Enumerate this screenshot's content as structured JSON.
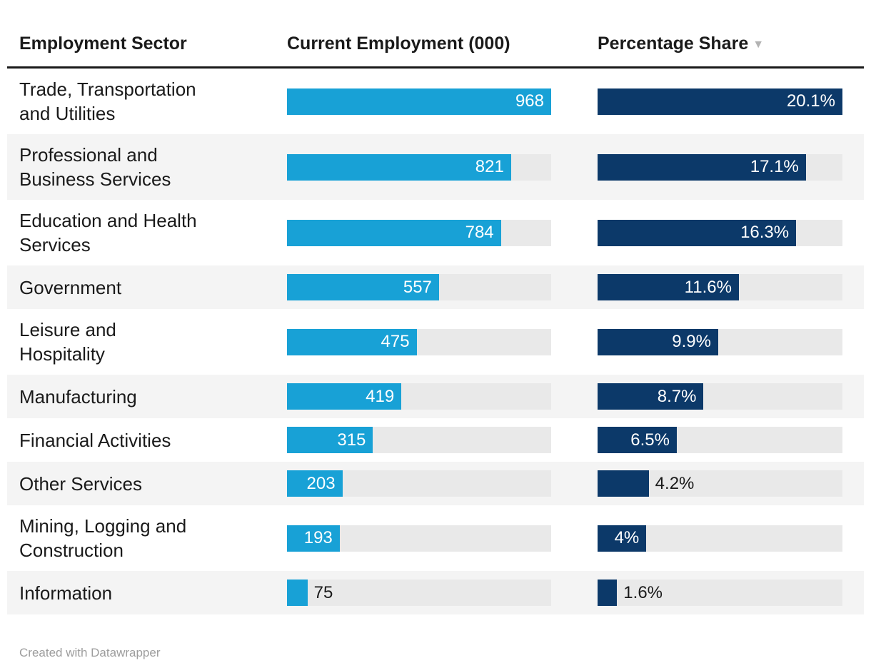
{
  "table": {
    "columns": [
      {
        "label": "Employment Sector",
        "sortable": true
      },
      {
        "label": "Current Employment (000)",
        "sortable": true
      },
      {
        "label": "Percentage Share",
        "sortable": true,
        "sort_icon": "▼",
        "sort_direction": "descending"
      }
    ],
    "rows": [
      {
        "sector": "Trade, Transportation\nand Utilities",
        "employment_value": 968,
        "employment_label": "968",
        "employment_label_inside": true,
        "share_value": 20.1,
        "share_label": "20.1%",
        "share_label_inside": true
      },
      {
        "sector": "Professional and\nBusiness Services",
        "employment_value": 821,
        "employment_label": "821",
        "employment_label_inside": true,
        "share_value": 17.1,
        "share_label": "17.1%",
        "share_label_inside": true
      },
      {
        "sector": "Education and Health\nServices",
        "employment_value": 784,
        "employment_label": "784",
        "employment_label_inside": true,
        "share_value": 16.3,
        "share_label": "16.3%",
        "share_label_inside": true
      },
      {
        "sector": "Government",
        "employment_value": 557,
        "employment_label": "557",
        "employment_label_inside": true,
        "share_value": 11.6,
        "share_label": "11.6%",
        "share_label_inside": true
      },
      {
        "sector": "Leisure and\nHospitality",
        "employment_value": 475,
        "employment_label": "475",
        "employment_label_inside": true,
        "share_value": 9.9,
        "share_label": "9.9%",
        "share_label_inside": true
      },
      {
        "sector": "Manufacturing",
        "employment_value": 419,
        "employment_label": "419",
        "employment_label_inside": true,
        "share_value": 8.7,
        "share_label": "8.7%",
        "share_label_inside": true
      },
      {
        "sector": "Financial Activities",
        "employment_value": 315,
        "employment_label": "315",
        "employment_label_inside": true,
        "share_value": 6.5,
        "share_label": "6.5%",
        "share_label_inside": true
      },
      {
        "sector": "Other Services",
        "employment_value": 203,
        "employment_label": "203",
        "employment_label_inside": true,
        "share_value": 4.2,
        "share_label": "4.2%",
        "share_label_inside": false
      },
      {
        "sector": "Mining, Logging and\nConstruction",
        "employment_value": 193,
        "employment_label": "193",
        "employment_label_inside": true,
        "share_value": 4,
        "share_label": "4%",
        "share_label_inside": true
      },
      {
        "sector": "Information",
        "employment_value": 75,
        "employment_label": "75",
        "employment_label_inside": false,
        "share_value": 1.6,
        "share_label": "1.6%",
        "share_label_inside": false
      }
    ]
  },
  "colors": {
    "employment_bar": "#18a1d6",
    "share_bar": "#0c3969",
    "track": "#e9e9e9",
    "row_stripe": "#f4f4f4",
    "header_rule": "#1a1a1a",
    "text": "#1a1a1a",
    "bar_label_inside": "#ffffff",
    "footer_text": "#9d9d9d"
  },
  "footer": {
    "credit": "Created with Datawrapper"
  },
  "chart_data": {
    "type": "table",
    "title": "",
    "columns": [
      "Employment Sector",
      "Current Employment (000)",
      "Percentage Share"
    ],
    "categories": [
      "Trade, Transportation and Utilities",
      "Professional and Business Services",
      "Education and Health Services",
      "Government",
      "Leisure and Hospitality",
      "Manufacturing",
      "Financial Activities",
      "Other Services",
      "Mining, Logging and Construction",
      "Information"
    ],
    "series": [
      {
        "name": "Current Employment (000)",
        "type": "bar",
        "values": [
          968,
          821,
          784,
          557,
          475,
          419,
          315,
          203,
          193,
          75
        ],
        "max_scale": 968,
        "color": "#18a1d6"
      },
      {
        "name": "Percentage Share",
        "type": "bar",
        "values": [
          20.1,
          17.1,
          16.3,
          11.6,
          9.9,
          8.7,
          6.5,
          4.2,
          4,
          1.6
        ],
        "labels": [
          "20.1%",
          "17.1%",
          "16.3%",
          "11.6%",
          "9.9%",
          "8.7%",
          "6.5%",
          "4.2%",
          "4%",
          "1.6%"
        ],
        "max_scale": 20.1,
        "color": "#0c3969"
      }
    ],
    "sorted_by": "Percentage Share, descending",
    "attribution": "Created with Datawrapper"
  }
}
